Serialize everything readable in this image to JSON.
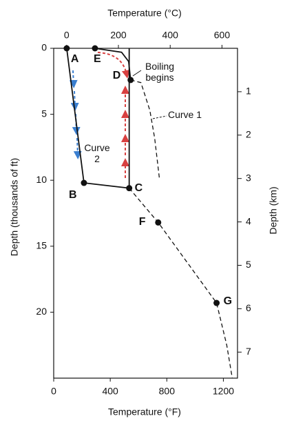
{
  "chart_data": {
    "type": "line",
    "x_label": "Temperature (°F)",
    "x2_label": "Temperature (°C)",
    "y_label": "Depth (thousands of ft)",
    "y2_label": "Depth (km)",
    "xlim": [
      0,
      1300
    ],
    "xticks": [
      0,
      400,
      800,
      1200
    ],
    "x2lim": [
      -50,
      660
    ],
    "x2ticks": [
      0,
      200,
      400,
      600
    ],
    "ylim": [
      0,
      25
    ],
    "yticks": [
      0,
      5,
      10,
      15,
      20
    ],
    "y_inverted": true,
    "y2lim": [
      0,
      7.6
    ],
    "y2ticks": [
      1,
      2,
      3,
      4,
      5,
      6,
      7
    ],
    "series": [
      {
        "name": "Curve 1",
        "style": "dashed",
        "color": "#111111",
        "x": [
          544,
          617,
          680,
          714,
          748
        ],
        "y": [
          2.4,
          2.6,
          4.7,
          6.8,
          9.9
        ]
      },
      {
        "name": "Curve 2",
        "style": "solid",
        "color": "#111111",
        "x": [
          92,
          214,
          534,
          534
        ],
        "y": [
          0,
          10.2,
          10.6,
          0
        ]
      },
      {
        "style": "solid",
        "color": "#111111",
        "x": [
          292,
          480,
          530,
          544
        ],
        "y": [
          0,
          0.3,
          1.0,
          2.4
        ]
      },
      {
        "style": "dashed",
        "color": "#111111",
        "x": [
          534,
          739,
          1152,
          1224,
          1263
        ],
        "y": [
          10.6,
          13.2,
          19.3,
          22.5,
          25
        ]
      }
    ],
    "points": {
      "labels": [
        "A",
        "B",
        "C",
        "D",
        "E",
        "F",
        "G"
      ],
      "x": [
        92,
        214,
        534,
        544,
        292,
        739,
        1152
      ],
      "y": [
        0,
        10.2,
        10.6,
        2.4,
        0,
        13.2,
        19.3
      ]
    },
    "annotation": "Boiling begins"
  }
}
